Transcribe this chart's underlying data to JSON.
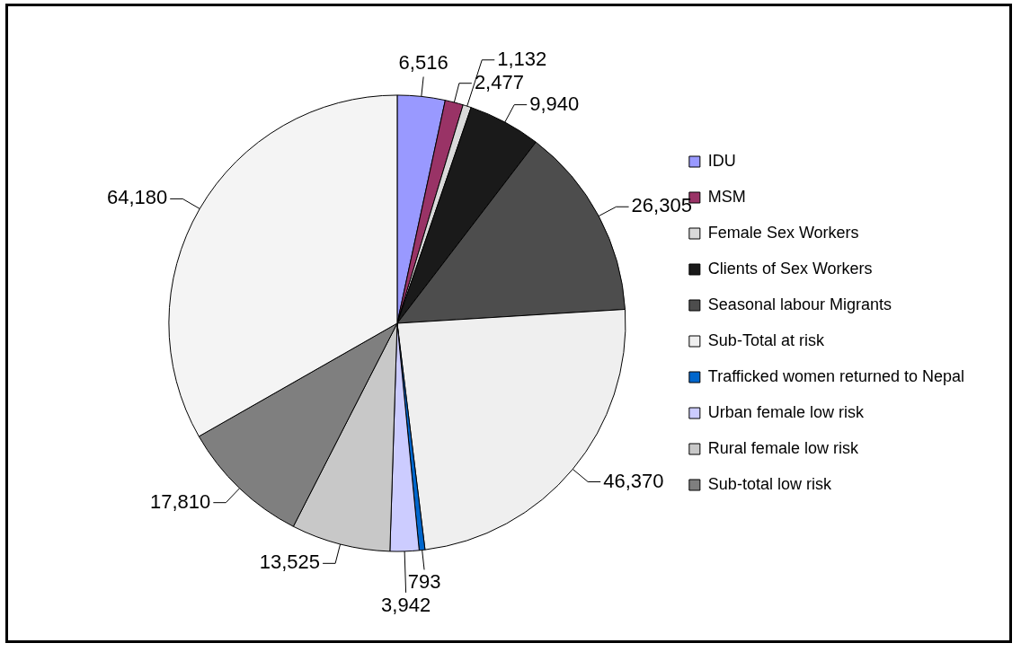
{
  "chart_data": {
    "type": "pie",
    "categories": [
      "IDU",
      "MSM",
      "Female Sex Workers",
      "Clients of Sex Workers",
      "Seasonal labour Migrants",
      "Sub-Total at risk",
      "Trafficked women returned to Nepal",
      "Urban female low risk",
      "Rural female low risk",
      "Sub-total low risk",
      null
    ],
    "values": [
      6516,
      2477,
      1132,
      9940,
      26305,
      46370,
      793,
      3942,
      13525,
      17810,
      64180
    ],
    "value_labels": [
      "6,516",
      "2,477",
      "1,132",
      "9,940",
      "26,305",
      "46,370",
      "793",
      "3,942",
      "13,525",
      "17,810",
      "64,180"
    ],
    "colors": [
      "#9999ff",
      "#993366",
      "#d9d9d9",
      "#1a1a1a",
      "#4d4d4d",
      "#efefef",
      "#0066cc",
      "#ccccff",
      "#c8c8c8",
      "#7f7f7f",
      "#f4f4f4"
    ],
    "legend": "right"
  }
}
